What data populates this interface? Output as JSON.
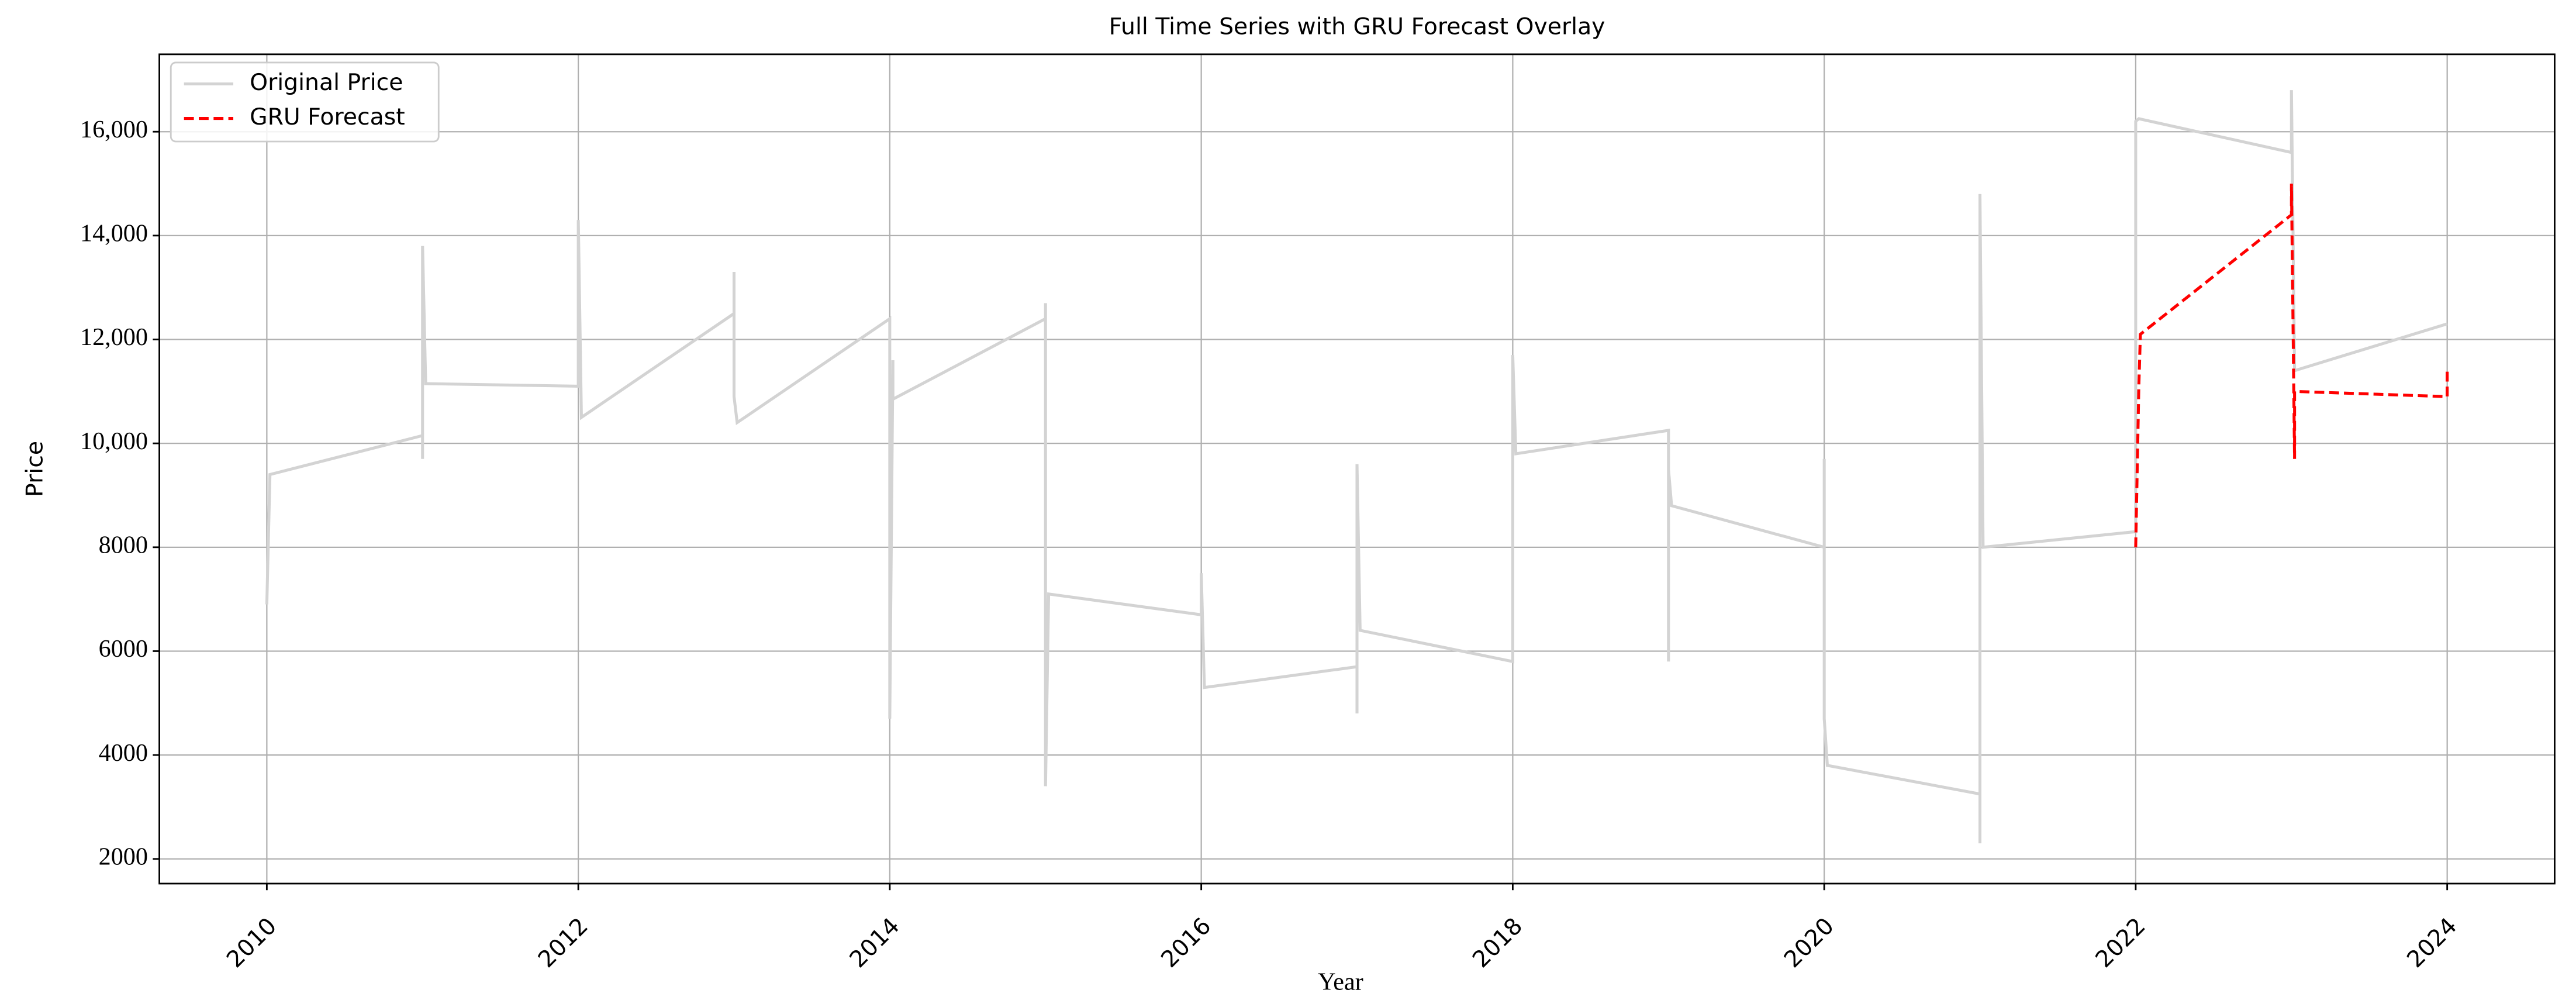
{
  "chart_data": {
    "type": "line",
    "title": "Full Time Series with GRU Forecast Overlay",
    "x_label": "Year",
    "y_label": "Price",
    "series": [
      {
        "name": "Original Price",
        "color": "#d3d3d3",
        "linestyle": "solid",
        "x": [
          2010.0,
          2010.02,
          2011.0,
          2011.0,
          2011.0,
          2011.02,
          2012.0,
          2012.0,
          2012.02,
          2013.0,
          2013.0,
          2013.0,
          2013.02,
          2014.0,
          2014.0,
          2014.02,
          2014.02,
          2015.0,
          2015.0,
          2015.0,
          2015.02,
          2016.0,
          2016.0,
          2016.02,
          2017.0,
          2017.0,
          2017.0,
          2017.02,
          2018.0,
          2018.0,
          2018.02,
          2019.0,
          2019.0,
          2019.0,
          2019.02,
          2020.0,
          2020.0,
          2020.0,
          2020.02,
          2021.0,
          2021.0,
          2021.0,
          2021.02,
          2022.0,
          2022.0,
          2022.02,
          2023.0,
          2023.0,
          2023.02,
          2024.0
        ],
        "values": [
          6900,
          9400,
          10150,
          9700,
          13800,
          11150,
          11100,
          14300,
          10500,
          12500,
          13300,
          10900,
          10400,
          12400,
          4700,
          11600,
          10850,
          12400,
          12700,
          3400,
          7100,
          6700,
          7500,
          5300,
          5700,
          4800,
          9600,
          6400,
          5800,
          11700,
          9800,
          10250,
          5800,
          9500,
          8800,
          8000,
          9700,
          4700,
          3800,
          3250,
          2300,
          14800,
          8000,
          8300,
          16200,
          16250,
          15600,
          16800,
          11400,
          12300
        ]
      },
      {
        "name": "GRU Forecast",
        "color": "#ff0000",
        "linestyle": "dashed",
        "x": [
          2022.0,
          2022.02,
          2022.03,
          2023.0,
          2023.0,
          2023.02,
          2023.02,
          2024.0,
          2024.0
        ],
        "values": [
          8000,
          11100,
          12100,
          14400,
          15000,
          9700,
          11000,
          10900,
          11400
        ]
      }
    ],
    "xlim": [
      2009.31,
      2024.69
    ],
    "xticks": [
      2010,
      2012,
      2014,
      2016,
      2018,
      2020,
      2022,
      2024
    ],
    "ylim": [
      1525,
      17490
    ],
    "yticks": [
      2000,
      4000,
      6000,
      8000,
      {
        "value": 10000,
        "label": "10,000"
      },
      {
        "value": 12000,
        "label": "12,000"
      },
      {
        "value": 14000,
        "label": "14,000"
      },
      {
        "value": 16000,
        "label": "16,000"
      }
    ],
    "grid": true,
    "legend": "upper left"
  }
}
